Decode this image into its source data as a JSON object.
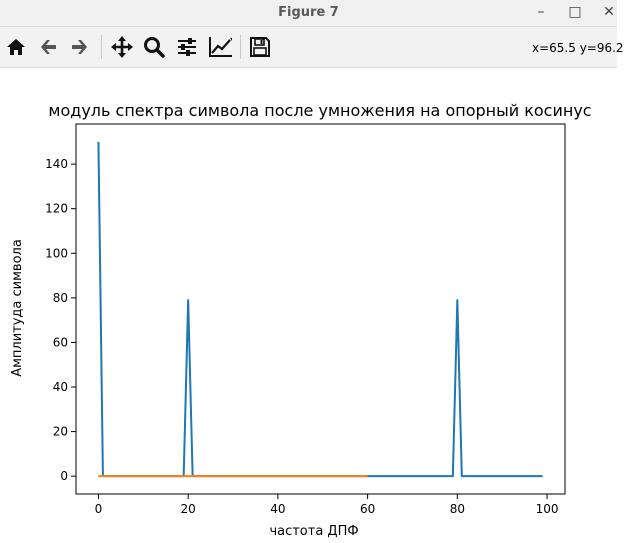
{
  "window": {
    "title": "Figure 7",
    "minimize_glyph": "–",
    "maximize_glyph": "□",
    "close_glyph": "✕"
  },
  "toolbar": {
    "buttons": [
      "home-icon",
      "back-arrow-icon",
      "forward-arrow-icon",
      "pan-icon",
      "zoom-icon",
      "configure-subplots-icon",
      "edit-axis-icon",
      "save-icon"
    ],
    "coordinates": "x=65.5 y=96.2"
  },
  "chart_data": {
    "type": "line",
    "title": "модуль спектра символа после умножения на опорный косинус",
    "xlabel": "частота ДПФ",
    "ylabel": "Амплитуда символа",
    "xlim": [
      -5,
      104
    ],
    "ylim": [
      -8,
      158
    ],
    "x_ticks": [
      0,
      20,
      40,
      60,
      80,
      100
    ],
    "y_ticks": [
      0,
      20,
      40,
      60,
      80,
      100,
      120,
      140
    ],
    "grid": false,
    "series": [
      {
        "color": "#1f77b4",
        "points": [
          [
            0,
            150
          ],
          [
            1,
            0
          ],
          [
            19,
            0
          ],
          [
            20,
            79
          ],
          [
            21,
            0
          ],
          [
            79,
            0
          ],
          [
            80,
            79
          ],
          [
            81,
            0
          ],
          [
            99,
            0
          ]
        ]
      },
      {
        "color": "#ff7f0e",
        "points": [
          [
            0,
            0
          ],
          [
            60,
            0
          ]
        ]
      }
    ]
  }
}
